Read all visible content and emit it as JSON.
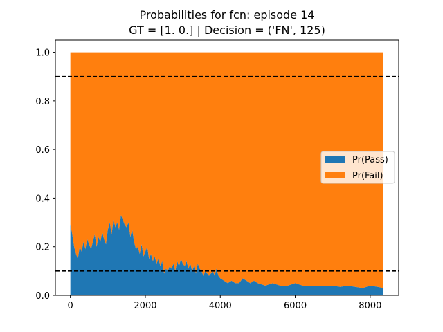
{
  "chart_data": {
    "type": "area",
    "stacked": true,
    "title": "Probabilities for fcn: episode 14",
    "subtitle": "GT = [1. 0.] | Decision = ('FN', 125)",
    "xlabel": "",
    "ylabel": "",
    "xlim": [
      -400,
      8760
    ],
    "ylim": [
      0,
      1.05
    ],
    "x_ticks": [
      0,
      2000,
      4000,
      6000,
      8000
    ],
    "x_tick_labels": [
      "0",
      "2000",
      "4000",
      "6000",
      "8000"
    ],
    "y_ticks": [
      0.0,
      0.2,
      0.4,
      0.6,
      0.8,
      1.0
    ],
    "y_tick_labels": [
      "0.0",
      "0.2",
      "0.4",
      "0.6",
      "0.8",
      "1.0"
    ],
    "grid": false,
    "legend_placement": "center-right",
    "thresholds": [
      0.9,
      0.1
    ],
    "threshold_style": "dashed black",
    "series": [
      {
        "name": "Pr(Pass)",
        "color": "#1f77b4",
        "x": [
          0,
          40,
          100,
          150,
          200,
          250,
          300,
          350,
          400,
          450,
          500,
          550,
          600,
          650,
          700,
          750,
          800,
          850,
          900,
          950,
          1000,
          1050,
          1100,
          1150,
          1200,
          1250,
          1300,
          1350,
          1400,
          1450,
          1500,
          1550,
          1600,
          1650,
          1700,
          1750,
          1800,
          1850,
          1900,
          1950,
          2000,
          2050,
          2100,
          2150,
          2200,
          2250,
          2300,
          2350,
          2400,
          2450,
          2500,
          2550,
          2600,
          2650,
          2700,
          2750,
          2800,
          2850,
          2900,
          2950,
          3000,
          3050,
          3100,
          3150,
          3200,
          3250,
          3300,
          3350,
          3400,
          3450,
          3500,
          3550,
          3600,
          3650,
          3700,
          3750,
          3800,
          3850,
          3900,
          3950,
          4000,
          4100,
          4200,
          4300,
          4400,
          4500,
          4600,
          4700,
          4800,
          4900,
          5000,
          5200,
          5400,
          5600,
          5800,
          6000,
          6200,
          6400,
          6600,
          6800,
          7000,
          7200,
          7400,
          7600,
          7800,
          8000,
          8200,
          8350
        ],
        "values": [
          0.29,
          0.26,
          0.2,
          0.17,
          0.15,
          0.2,
          0.18,
          0.22,
          0.19,
          0.23,
          0.21,
          0.19,
          0.22,
          0.25,
          0.2,
          0.24,
          0.22,
          0.26,
          0.23,
          0.21,
          0.27,
          0.3,
          0.25,
          0.31,
          0.28,
          0.3,
          0.27,
          0.33,
          0.31,
          0.29,
          0.28,
          0.3,
          0.24,
          0.27,
          0.22,
          0.19,
          0.2,
          0.17,
          0.21,
          0.16,
          0.18,
          0.2,
          0.15,
          0.17,
          0.14,
          0.16,
          0.13,
          0.15,
          0.12,
          0.14,
          0.09,
          0.11,
          0.1,
          0.12,
          0.11,
          0.13,
          0.1,
          0.14,
          0.12,
          0.15,
          0.13,
          0.12,
          0.14,
          0.11,
          0.13,
          0.1,
          0.12,
          0.09,
          0.13,
          0.11,
          0.1,
          0.08,
          0.1,
          0.09,
          0.08,
          0.09,
          0.1,
          0.08,
          0.11,
          0.08,
          0.07,
          0.06,
          0.05,
          0.06,
          0.05,
          0.05,
          0.07,
          0.06,
          0.05,
          0.06,
          0.05,
          0.04,
          0.05,
          0.04,
          0.04,
          0.05,
          0.04,
          0.04,
          0.04,
          0.04,
          0.04,
          0.035,
          0.04,
          0.035,
          0.03,
          0.04,
          0.035,
          0.03
        ]
      },
      {
        "name": "Pr(Fail)",
        "color": "#ff7f0e",
        "complement_of": "Pr(Pass)",
        "total": 1.0
      }
    ]
  }
}
